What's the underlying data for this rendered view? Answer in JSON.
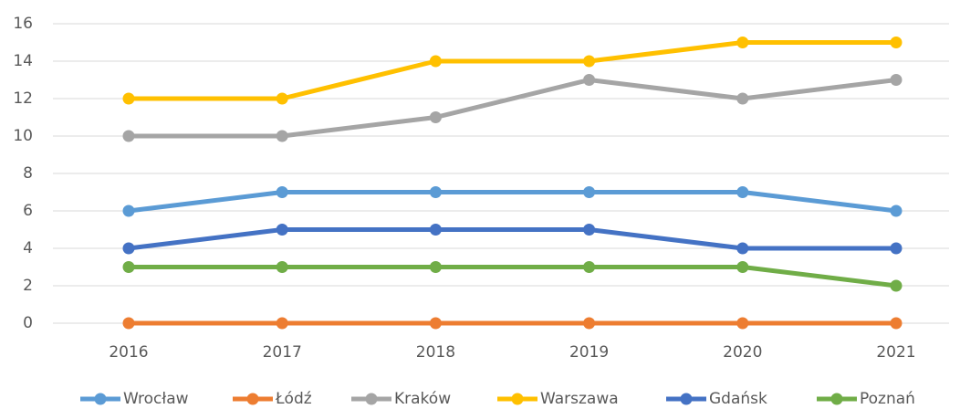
{
  "chart_data": {
    "type": "line",
    "categories": [
      "2016",
      "2017",
      "2018",
      "2019",
      "2020",
      "2021"
    ],
    "series": [
      {
        "name": "Wrocław",
        "color": "#5b9bd5",
        "values": [
          6,
          7,
          7,
          7,
          7,
          6
        ]
      },
      {
        "name": "Łódź",
        "color": "#ed7d31",
        "values": [
          0,
          0,
          0,
          0,
          0,
          0
        ]
      },
      {
        "name": "Kraków",
        "color": "#a5a5a5",
        "values": [
          10,
          10,
          11,
          13,
          12,
          13
        ]
      },
      {
        "name": "Warszawa",
        "color": "#ffc000",
        "values": [
          12,
          12,
          14,
          14,
          15,
          15
        ]
      },
      {
        "name": "Gdańsk",
        "color": "#4472c4",
        "values": [
          4,
          5,
          5,
          5,
          4,
          4
        ]
      },
      {
        "name": "Poznań",
        "color": "#70ad47",
        "values": [
          3,
          3,
          3,
          3,
          3,
          2
        ]
      }
    ],
    "ylim": [
      0,
      16
    ],
    "yticks": [
      0,
      2,
      4,
      6,
      8,
      10,
      12,
      14,
      16
    ],
    "grid": true,
    "legend": "bottom"
  }
}
